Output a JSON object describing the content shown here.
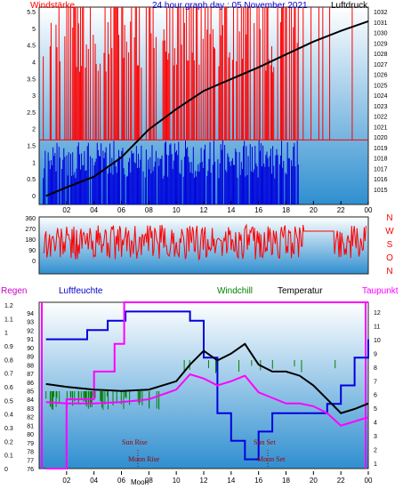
{
  "header": {
    "left_label": "Windstärke",
    "title": "24 hour graph day : 05 November 2021",
    "right_label": "Luftdruck"
  },
  "lower_header": {
    "regen": "Regen",
    "luftfeuchte": "Luftfeuchte",
    "windchill": "Windchill",
    "temperatur": "Temperatur",
    "taupunkt": "Taupunkt"
  },
  "colors": {
    "red": "#ff0000",
    "blue": "#0000dd",
    "magenta": "#ff00ff",
    "green": "#008000",
    "black": "#000000",
    "darkred": "#990000"
  },
  "hours": [
    "02",
    "04",
    "06",
    "08",
    "10",
    "12",
    "14",
    "16",
    "18",
    "20",
    "22",
    "00"
  ],
  "chart_data": [
    {
      "type": "line",
      "panel": "wind-pressure",
      "left_axis": {
        "label": "Windstärke",
        "ticks": [
          "5.5",
          "5",
          "4.5",
          "4",
          "3.5",
          "3",
          "2.5",
          "2",
          "1.5",
          "1",
          "0.5",
          "0"
        ],
        "ylim": [
          0,
          5.5
        ]
      },
      "right_axis": {
        "label": "Luftdruck",
        "ticks": [
          "1032",
          "1031",
          "1030",
          "1029",
          "1028",
          "1027",
          "1026",
          "1025",
          "1024",
          "1023",
          "1022",
          "1021",
          "1020",
          "1019",
          "1018",
          "1017",
          "1016",
          "1015"
        ],
        "ylim": [
          1014,
          1032
        ]
      },
      "series": [
        {
          "name": "Luftdruck",
          "color": "#000000",
          "x": [
            0.5,
            2,
            4,
            6,
            8,
            10,
            12,
            14,
            16,
            18,
            20,
            22,
            24
          ],
          "values": [
            1014.8,
            1015.6,
            1016.6,
            1018.4,
            1021.0,
            1022.9,
            1024.6,
            1025.7,
            1026.8,
            1028.0,
            1029.2,
            1030.2,
            1031.1
          ]
        }
      ]
    },
    {
      "type": "line",
      "panel": "wind-direction",
      "left_axis": {
        "ticks": [
          "360",
          "270",
          "180",
          "90",
          "0"
        ],
        "ylim": [
          0,
          360
        ]
      },
      "right_axis": {
        "ticks": [
          "N",
          "W",
          "S",
          "O",
          "N"
        ]
      },
      "series": []
    },
    {
      "type": "line",
      "panel": "humidity-temperature",
      "left_axis_regen": {
        "label": "Regen",
        "ticks": [
          "1.2",
          "1.1",
          "1",
          "0.9",
          "0.8",
          "0.7",
          "0.6",
          "0.5",
          "0.4",
          "0.3",
          "0.2",
          "0.1",
          "0"
        ],
        "ylim": [
          0,
          1.2
        ]
      },
      "left_axis_luftfeuchte": {
        "label": "Luftfeuchte",
        "ticks": [
          "94",
          "93",
          "92",
          "91",
          "90",
          "89",
          "88",
          "87",
          "86",
          "85",
          "84",
          "83",
          "82",
          "81",
          "80",
          "79",
          "78",
          "77",
          "76"
        ],
        "ylim": [
          76,
          94
        ]
      },
      "right_axis": {
        "label": "Temperatur",
        "ticks": [
          "12",
          "11",
          "10",
          "9",
          "8",
          "7",
          "6",
          "5",
          "4",
          "3",
          "2",
          "1"
        ],
        "ylim": [
          0.5,
          12.5
        ]
      },
      "series": [
        {
          "name": "Luftfeuchte",
          "color": "#0000dd",
          "x": [
            0.5,
            2,
            3.5,
            5,
            6.3,
            8,
            10,
            11,
            12,
            13,
            14,
            15,
            16,
            17,
            18,
            19,
            20,
            21,
            22,
            23,
            24
          ],
          "values": [
            90,
            90,
            91,
            92,
            93,
            93,
            93,
            92,
            88,
            82,
            79,
            77,
            80,
            82,
            82,
            82,
            82,
            83,
            85,
            88,
            90
          ]
        },
        {
          "name": "Regen",
          "color": "#ff00ff",
          "x": [
            0.5,
            2,
            4,
            5.5,
            6.2,
            8,
            10,
            12,
            14,
            16,
            18,
            20,
            22,
            24
          ],
          "values": [
            0.0,
            0.5,
            0.7,
            0.9,
            1.2,
            1.2,
            1.2,
            1.2,
            1.2,
            1.2,
            1.2,
            1.2,
            1.2,
            1.2
          ]
        },
        {
          "name": "Temperatur",
          "color": "#000000",
          "x": [
            0.5,
            2,
            4,
            6,
            8,
            10,
            11,
            12,
            13,
            14,
            15,
            16,
            17,
            18,
            19,
            20,
            21,
            22,
            23,
            24
          ],
          "values": [
            6.6,
            6.4,
            6.2,
            6.1,
            6.2,
            6.8,
            8.0,
            9.0,
            8.3,
            8.8,
            9.5,
            8.0,
            7.5,
            7.5,
            7.2,
            6.5,
            5.5,
            4.5,
            4.8,
            5.2
          ]
        },
        {
          "name": "Taupunkt",
          "color": "#ff00ff",
          "x": [
            0.5,
            2,
            4,
            6,
            8,
            10,
            11,
            12,
            13,
            14,
            15,
            16,
            17,
            18,
            19,
            20,
            21,
            22,
            23,
            24
          ],
          "values": [
            5.3,
            5.2,
            5.2,
            5.3,
            5.5,
            6.2,
            7.3,
            7.0,
            6.5,
            6.8,
            7.2,
            6.0,
            5.6,
            5.2,
            5.2,
            5.0,
            4.5,
            3.6,
            3.9,
            4.2
          ]
        }
      ]
    }
  ],
  "annotations": {
    "sun_rise": "Sun Rise",
    "moon_rise": "Moon Rise",
    "sun_set": "Sun Set",
    "moon_set": "Moon Set",
    "moon_axis": "Moon"
  }
}
